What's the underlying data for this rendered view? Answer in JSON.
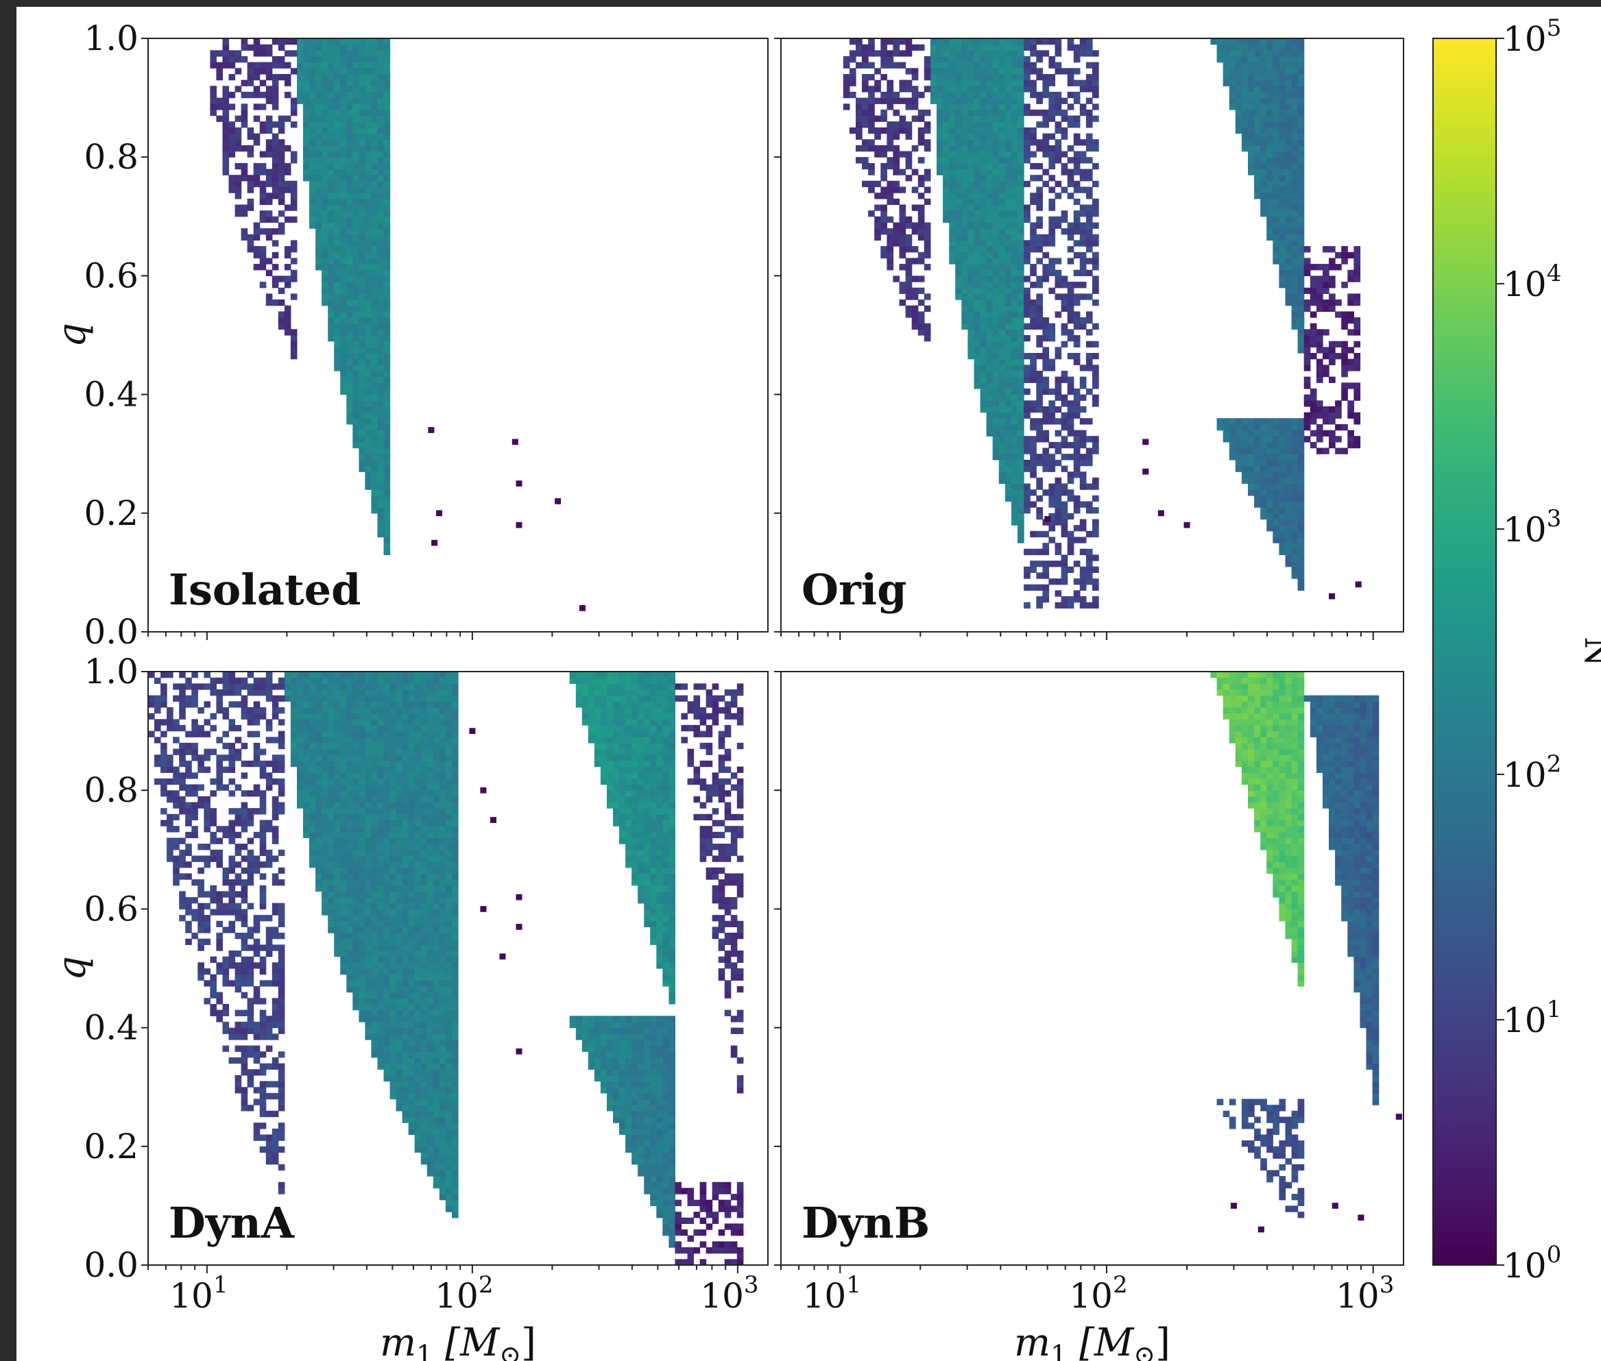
{
  "chart_data": {
    "type": "heatmap",
    "layout": "2x2 panels, shared log-scale x axis, shared q axis",
    "xlabel_parts": [
      "m",
      "1",
      " [M",
      "⊙",
      "]"
    ],
    "ylabel": "q",
    "x_scale": "log",
    "xlim": [
      6,
      1300
    ],
    "ylim": [
      0.0,
      1.0
    ],
    "x_ticks": [
      {
        "value": 10,
        "base": "10",
        "exp": "1"
      },
      {
        "value": 100,
        "base": "10",
        "exp": "2"
      },
      {
        "value": 1000,
        "base": "10",
        "exp": "3"
      }
    ],
    "y_ticks": [
      "0.0",
      "0.2",
      "0.4",
      "0.6",
      "0.8",
      "1.0"
    ],
    "colorbar": {
      "label": "N",
      "scale": "log",
      "range": [
        1,
        100000
      ],
      "colormap": "viridis",
      "ticks": [
        {
          "value": 1,
          "base": "10",
          "exp": "0"
        },
        {
          "value": 10,
          "base": "10",
          "exp": "1"
        },
        {
          "value": 100,
          "base": "10",
          "exp": "2"
        },
        {
          "value": 1000,
          "base": "10",
          "exp": "3"
        },
        {
          "value": 10000,
          "base": "10",
          "exp": "4"
        },
        {
          "value": 100000,
          "base": "10",
          "exp": "5"
        }
      ]
    },
    "panels": [
      {
        "label": "Isolated",
        "regions": [
          {
            "m_min": 22,
            "m_max": 50,
            "q_min": 0.1,
            "q_max": 1.0,
            "edge": "curved",
            "log10_N": 2.3
          },
          {
            "m_min": 10,
            "m_max": 22,
            "q_min": 0.45,
            "q_max": 1.0,
            "edge": "curved",
            "log10_N": 0.8,
            "sparse": true
          }
        ],
        "scatter": [
          [
            70,
            0.34
          ],
          [
            75,
            0.2
          ],
          [
            145,
            0.32
          ],
          [
            150,
            0.25
          ],
          [
            150,
            0.18
          ],
          [
            210,
            0.22
          ],
          [
            260,
            0.04
          ],
          [
            72,
            0.15
          ]
        ]
      },
      {
        "label": "Orig",
        "regions": [
          {
            "m_min": 22,
            "m_max": 50,
            "q_min": 0.12,
            "q_max": 1.0,
            "edge": "curved",
            "log10_N": 2.3
          },
          {
            "m_min": 10,
            "m_max": 22,
            "q_min": 0.45,
            "q_max": 1.0,
            "edge": "curved",
            "log10_N": 0.8,
            "sparse": true
          },
          {
            "m_min": 50,
            "m_max": 95,
            "q_min": 0.04,
            "q_max": 1.0,
            "edge": "flat",
            "log10_N": 1.0,
            "sparse": true
          },
          {
            "m_min": 250,
            "m_max": 560,
            "q_min": 0.44,
            "q_max": 1.0,
            "edge": "diagonal",
            "log10_N": 1.8
          },
          {
            "m_min": 250,
            "m_max": 560,
            "q_min": 0.05,
            "q_max": 0.36,
            "edge": "diagonal",
            "log10_N": 1.7
          },
          {
            "m_min": 560,
            "m_max": 900,
            "q_min": 0.3,
            "q_max": 0.65,
            "edge": "flat",
            "log10_N": 0.5,
            "sparse": true
          }
        ],
        "scatter": [
          [
            140,
            0.32
          ],
          [
            140,
            0.27
          ],
          [
            160,
            0.2
          ],
          [
            200,
            0.18
          ],
          [
            60,
            0.19
          ],
          [
            880,
            0.08
          ],
          [
            700,
            0.06
          ]
        ]
      },
      {
        "label": "DynA",
        "regions": [
          {
            "m_min": 20,
            "m_max": 90,
            "q_min": 0.06,
            "q_max": 1.0,
            "edge": "curved",
            "log10_N": 2.2
          },
          {
            "m_min": 6,
            "m_max": 20,
            "q_min": 0.1,
            "q_max": 1.0,
            "edge": "curved",
            "log10_N": 1.0,
            "sparse": true
          },
          {
            "m_min": 230,
            "m_max": 580,
            "q_min": 0.42,
            "q_max": 1.0,
            "edge": "diagonal",
            "log10_N": 2.4
          },
          {
            "m_min": 230,
            "m_max": 580,
            "q_min": 0.02,
            "q_max": 0.42,
            "edge": "diagonal",
            "log10_N": 2.0
          },
          {
            "m_min": 580,
            "m_max": 1050,
            "q_min": 0.24,
            "q_max": 0.98,
            "edge": "diagonal",
            "log10_N": 0.8,
            "sparse": true
          },
          {
            "m_min": 580,
            "m_max": 1050,
            "q_min": 0.0,
            "q_max": 0.14,
            "edge": "flat",
            "log10_N": 0.5,
            "sparse": true
          }
        ],
        "scatter": [
          [
            110,
            0.8
          ],
          [
            120,
            0.75
          ],
          [
            150,
            0.62
          ],
          [
            150,
            0.57
          ],
          [
            110,
            0.6
          ],
          [
            130,
            0.52
          ],
          [
            150,
            0.36
          ],
          [
            100,
            0.9
          ]
        ]
      },
      {
        "label": "DynB",
        "regions": [
          {
            "m_min": 250,
            "m_max": 560,
            "q_min": 0.44,
            "q_max": 1.0,
            "edge": "diagonal",
            "log10_N": 3.6
          },
          {
            "m_min": 560,
            "m_max": 1050,
            "q_min": 0.24,
            "q_max": 0.96,
            "edge": "diagonal",
            "log10_N": 1.5
          },
          {
            "m_min": 250,
            "m_max": 560,
            "q_min": 0.05,
            "q_max": 0.28,
            "edge": "diagonal",
            "log10_N": 1.2,
            "sparse": true
          }
        ],
        "scatter": [
          [
            1250,
            0.25
          ],
          [
            720,
            0.1
          ],
          [
            900,
            0.08
          ],
          [
            300,
            0.1
          ],
          [
            380,
            0.06
          ]
        ]
      }
    ]
  }
}
